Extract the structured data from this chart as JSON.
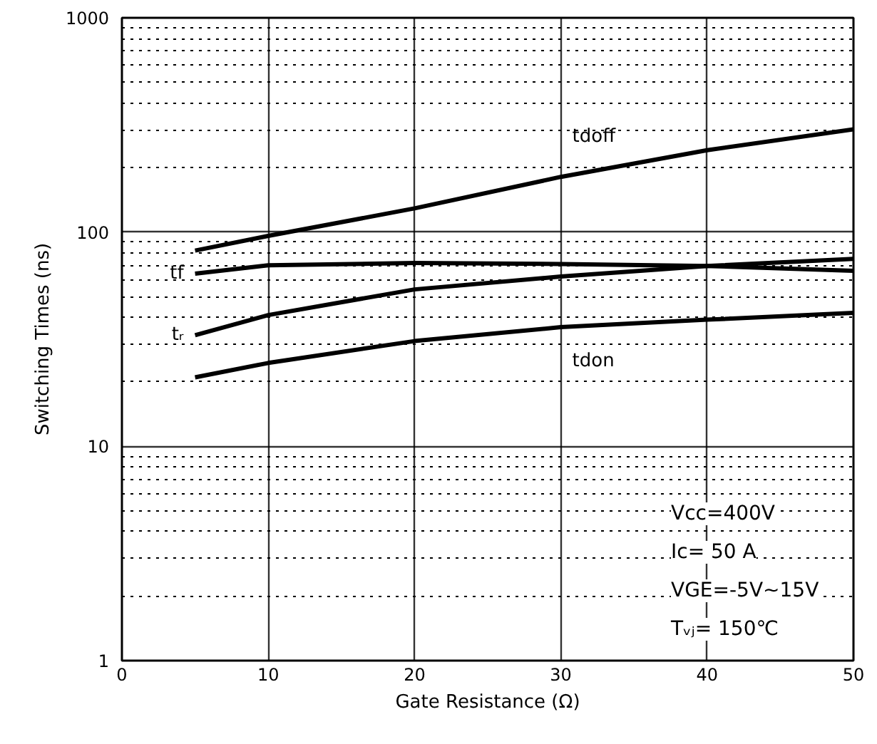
{
  "chart_data": {
    "type": "line",
    "xlabel": "Gate Resistance (Ω)",
    "ylabel": "Switching Times (ns)",
    "x": [
      5,
      10,
      20,
      30,
      40,
      50
    ],
    "series": [
      {
        "name": "tdoff",
        "color": "#000000",
        "values": [
          82,
          96,
          129,
          181,
          241,
          302
        ]
      },
      {
        "name": "tf",
        "color": "#000000",
        "values": [
          64,
          70,
          71.7,
          71,
          69.5,
          66
        ]
      },
      {
        "name": "tᵣ",
        "color": "#000000",
        "values": [
          33,
          41,
          54,
          62,
          69.5,
          75
        ]
      },
      {
        "name": "tdon",
        "color": "#000000",
        "values": [
          21,
          24.5,
          31,
          36,
          39,
          42
        ]
      }
    ],
    "log": "y",
    "xlim": [
      0,
      50
    ],
    "ylim": [
      1,
      1000
    ],
    "xticks": [
      0,
      10,
      20,
      30,
      40,
      50
    ],
    "yticks": [
      1,
      10,
      100,
      1000
    ],
    "grid": true,
    "line_style": "solid",
    "marker": "none",
    "annotations": [
      "Vcc=400V",
      "Ic= 50 A",
      "VGE=-5V~15V",
      "Tᵥⱼ= 150℃"
    ]
  }
}
